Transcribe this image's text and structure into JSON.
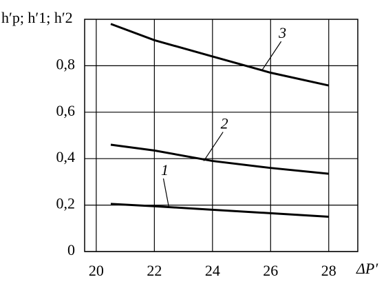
{
  "chart_data": {
    "type": "line",
    "y_label": "h′p; h′1; h′2",
    "x_label": "ΔP′",
    "x": [
      20.5,
      22,
      24,
      26,
      28
    ],
    "series": [
      {
        "name": "1",
        "color": "#000000",
        "values": [
          0.205,
          0.195,
          0.18,
          0.165,
          0.15
        ]
      },
      {
        "name": "2",
        "color": "#000000",
        "values": [
          0.46,
          0.435,
          0.39,
          0.36,
          0.335
        ]
      },
      {
        "name": "3",
        "color": "#000000",
        "values": [
          0.98,
          0.91,
          0.84,
          0.77,
          0.715
        ]
      }
    ],
    "xlim": [
      19.6,
      29
    ],
    "ylim": [
      0,
      1
    ],
    "xticks": [
      20,
      22,
      24,
      26,
      28
    ],
    "yticks": [
      0,
      {
        "value": 0.2,
        "label": "0,2"
      },
      {
        "value": 0.4,
        "label": "0,4"
      },
      {
        "value": 0.6,
        "label": "0,6"
      },
      {
        "value": 0.8,
        "label": "0,8"
      }
    ],
    "grid": true
  }
}
